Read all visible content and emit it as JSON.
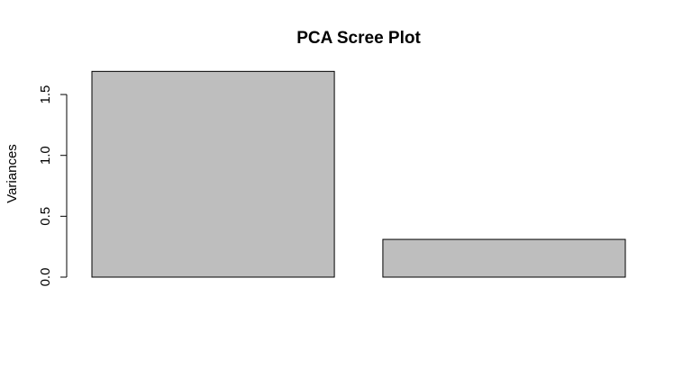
{
  "chart_data": {
    "type": "bar",
    "title": "PCA Scree Plot",
    "xlabel": "",
    "ylabel": "Variances",
    "categories": [
      "",
      ""
    ],
    "values": [
      1.69,
      0.31
    ],
    "ylim": [
      0,
      1.7
    ],
    "yticks": [
      "0.0",
      "0.5",
      "1.0",
      "1.5"
    ],
    "ytick_values": [
      0,
      0.5,
      1.0,
      1.5
    ],
    "grid": false,
    "legend": "none",
    "bar_color": "#bebebe",
    "bar_border_color": "#000000"
  }
}
